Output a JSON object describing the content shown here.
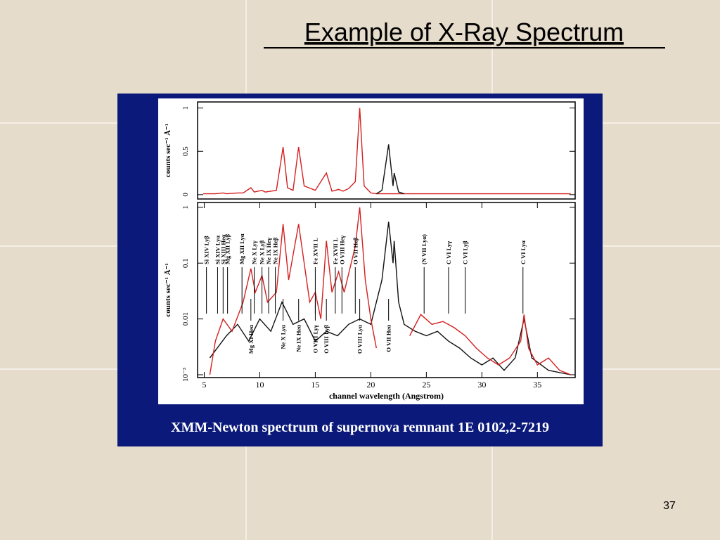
{
  "slide": {
    "title": "Example of X-Ray Spectrum",
    "page_number": "37",
    "caption": "XMM-Newton spectrum of supernova remnant 1E 0102,2-7219"
  },
  "chart_data": [
    {
      "type": "line",
      "y_label": "counts sec⁻¹ Å⁻¹",
      "log_y": false,
      "xlim": [
        4.4,
        38.4
      ],
      "ylim": [
        -0.05,
        1.07
      ],
      "yticks": [
        0,
        0.5,
        1
      ],
      "series": [
        {
          "color": "#d42020",
          "x": [
            4.9,
            6,
            6.7,
            7,
            8,
            8.5,
            9.2,
            9.5,
            10.2,
            10.5,
            11,
            11.5,
            12.1,
            12.5,
            13,
            13.5,
            14,
            15,
            16,
            16.5,
            17.1,
            17.5,
            18,
            18.6,
            19,
            19.4,
            20,
            20.5,
            23,
            26,
            29,
            32,
            35,
            38
          ],
          "values": [
            0.01,
            0.01,
            0.02,
            0.01,
            0.02,
            0.02,
            0.08,
            0.03,
            0.05,
            0.03,
            0.04,
            0.05,
            0.55,
            0.08,
            0.05,
            0.55,
            0.1,
            0.05,
            0.25,
            0.04,
            0.06,
            0.04,
            0.07,
            0.15,
            1.0,
            0.1,
            0.02,
            0.01,
            0.01,
            0.01,
            0.01,
            0.01,
            0.01,
            0.01
          ]
        },
        {
          "color": "#111111",
          "x": [
            20.5,
            21,
            21.6,
            22,
            22.1,
            22.5,
            23
          ],
          "values": [
            0.01,
            0.05,
            0.58,
            0.1,
            0.25,
            0.03,
            0.01
          ]
        }
      ]
    },
    {
      "type": "line",
      "y_label": "counts sec⁻¹ Å⁻¹",
      "x_label": "channel wavelength (Angstrom)",
      "log_y": true,
      "xlim": [
        4.4,
        38.4
      ],
      "ylim": [
        0.00089,
        1.22
      ],
      "xticks": [
        5,
        10,
        15,
        20,
        25,
        30,
        35
      ],
      "yticks": [
        {
          "value": 0.001,
          "label": "10⁻³"
        },
        0.01,
        0.1,
        1
      ],
      "series": [
        {
          "color": "#111111",
          "x": [
            5.5,
            7,
            8,
            9,
            10,
            11,
            12,
            13,
            14,
            15,
            16,
            17,
            18,
            19,
            20,
            20.5,
            21,
            21.6,
            22,
            22.1,
            22.5,
            23,
            24,
            25,
            26,
            27,
            28,
            29,
            30,
            31,
            32,
            33,
            33.8,
            34.5,
            36,
            38
          ],
          "values": [
            0.002,
            0.005,
            0.008,
            0.004,
            0.01,
            0.006,
            0.02,
            0.008,
            0.01,
            0.004,
            0.006,
            0.005,
            0.008,
            0.01,
            0.008,
            0.02,
            0.05,
            0.55,
            0.1,
            0.25,
            0.02,
            0.008,
            0.006,
            0.005,
            0.006,
            0.004,
            0.003,
            0.002,
            0.0015,
            0.002,
            0.0012,
            0.002,
            0.01,
            0.002,
            0.0012,
            0.001
          ]
        },
        {
          "color": "#d42020",
          "x": [
            5.5,
            6,
            6.7,
            7.5,
            8.5,
            9.2,
            9.6,
            10.2,
            10.7,
            11.5,
            12.1,
            12.6,
            13.5,
            14,
            14.5,
            15,
            15.5,
            16,
            16.5,
            17.1,
            17.6,
            18.6,
            19,
            19.5,
            20,
            20.5,
            22,
            23.5,
            24.5,
            25.5,
            26.5,
            27.5,
            28.5,
            29.5,
            30.5,
            31.5,
            32.5,
            33.5,
            33.8,
            34.2,
            35,
            36,
            37,
            38
          ],
          "values": [
            0.001,
            0.004,
            0.01,
            0.006,
            0.02,
            0.08,
            0.03,
            0.06,
            0.02,
            0.03,
            0.5,
            0.05,
            0.5,
            0.1,
            0.02,
            0.03,
            0.01,
            0.25,
            0.03,
            0.07,
            0.03,
            0.2,
            1.0,
            0.05,
            0.01,
            0.003,
            null,
            0.005,
            0.012,
            0.008,
            0.009,
            0.007,
            0.005,
            0.003,
            0.002,
            0.0015,
            0.002,
            0.004,
            0.012,
            0.003,
            0.0015,
            0.002,
            0.0012,
            0.001
          ]
        }
      ],
      "annotations": [
        {
          "text": "Si XIV Lyβ",
          "x": 5.2,
          "side": "upper"
        },
        {
          "text": "Si XIV Lyα",
          "x": 6.2,
          "side": "upper"
        },
        {
          "text": "Si XIII Heα",
          "x": 6.7,
          "side": "upper"
        },
        {
          "text": "Mg XII Lyβ",
          "x": 7.1,
          "side": "upper"
        },
        {
          "text": "Mg XII Lyα",
          "x": 8.4,
          "side": "upper"
        },
        {
          "text": "Ne X Lyγ",
          "x": 9.5,
          "side": "upper"
        },
        {
          "text": "Ne X Lyβ",
          "x": 10.2,
          "side": "upper"
        },
        {
          "text": "Ne IX Heγ",
          "x": 10.8,
          "side": "upper"
        },
        {
          "text": "Ne IX Heβ",
          "x": 11.4,
          "side": "upper"
        },
        {
          "text": "Fe XVII L",
          "x": 15.0,
          "side": "upper"
        },
        {
          "text": "Fe XVII L",
          "x": 16.8,
          "side": "upper"
        },
        {
          "text": "O VIII Heγ",
          "x": 17.4,
          "side": "upper"
        },
        {
          "text": "O VII Heβ",
          "x": 18.6,
          "side": "upper"
        },
        {
          "text": "(N VII Lyα)",
          "x": 24.8,
          "side": "upper"
        },
        {
          "text": "C VI Lyγ",
          "x": 27.0,
          "side": "upper"
        },
        {
          "text": "C VI Lyβ",
          "x": 28.5,
          "side": "upper"
        },
        {
          "text": "C VI Lyα",
          "x": 33.7,
          "side": "upper"
        },
        {
          "text": "Mg XI Heα",
          "x": 9.2,
          "side": "lower"
        },
        {
          "text": "Ne X Lyα",
          "x": 12.1,
          "side": "lower"
        },
        {
          "text": "Ne IX Heα",
          "x": 13.5,
          "side": "lower"
        },
        {
          "text": "O VIII Lyγ",
          "x": 15.0,
          "side": "lower"
        },
        {
          "text": "O VIII Lyβ",
          "x": 16.0,
          "side": "lower"
        },
        {
          "text": "O VIII Lyα",
          "x": 19.0,
          "side": "lower"
        },
        {
          "text": "O VII Heα",
          "x": 21.6,
          "side": "lower"
        }
      ]
    }
  ]
}
